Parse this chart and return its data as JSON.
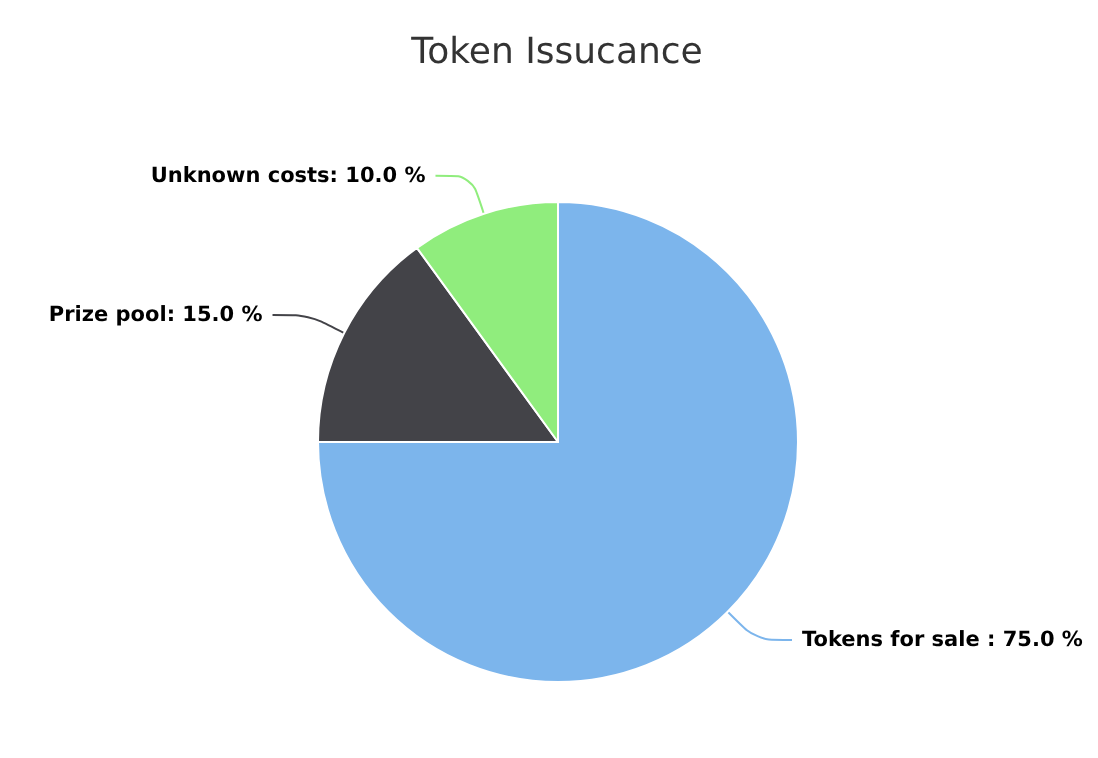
{
  "chart_data": {
    "type": "pie",
    "title": "Token Issucance",
    "categories": [
      "Tokens for sale",
      "Prize pool",
      "Unknown costs"
    ],
    "values": [
      75,
      15,
      10
    ],
    "colors": [
      "#7cb5ec",
      "#434348",
      "#90ed7d"
    ],
    "value_labels": [
      " : 75.0 %",
      ": 15.0 %",
      ": 10.0 %"
    ],
    "legend": false
  }
}
